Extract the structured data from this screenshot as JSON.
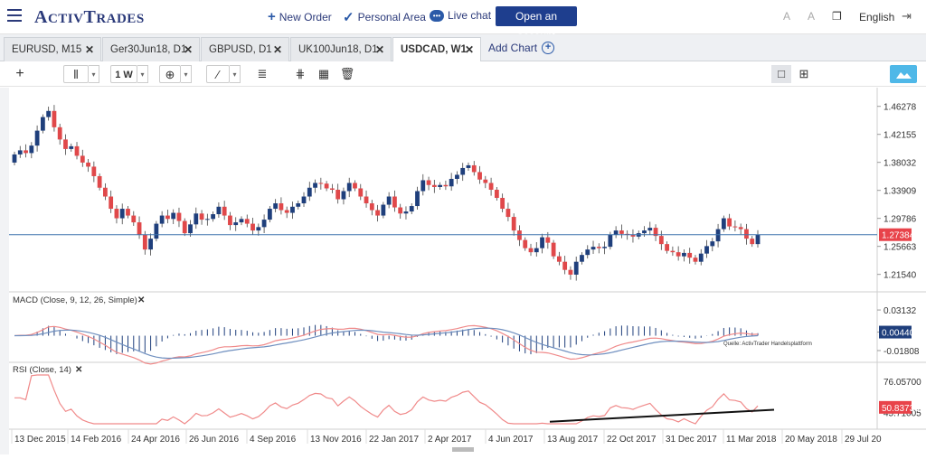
{
  "header": {
    "logo_main": "ActivTrades",
    "new_order": "New Order",
    "personal_area": "Personal Area",
    "live_chat": "Live chat",
    "open_account": "Open an account",
    "language": "English"
  },
  "tabs": [
    {
      "label": "EURUSD, M15",
      "active": false
    },
    {
      "label": "Ger30Jun18, D1",
      "active": false
    },
    {
      "label": "GBPUSD, D1",
      "active": false
    },
    {
      "label": "UK100Jun18, D1",
      "active": false
    },
    {
      "label": "USDCAD, W1",
      "active": true
    }
  ],
  "add_chart": "Add Chart",
  "toolbar": {
    "timeframe": "1 W"
  },
  "colors": {
    "bull": "#1f3f7c",
    "bear": "#e0484a",
    "price_line": "#3f74ad",
    "price_badge": "#e8434a",
    "macd_signal": "#f08a8a",
    "macd_main": "#6f8fbf"
  },
  "chart_data": [
    {
      "type": "candlestick",
      "title": "",
      "y_ticks": [
        "1.46278",
        "1.42155",
        "1.38032",
        "1.33909",
        "1.29786",
        "1.25663",
        "1.21540"
      ],
      "y_tick_values": [
        1.46278,
        1.42155,
        1.38032,
        1.33909,
        1.29786,
        1.25663,
        1.2154
      ],
      "ylim": [
        1.195,
        1.485
      ],
      "current_price": "1.27384",
      "current_value": 1.27384,
      "x_labels": [
        "13 Dec 2015",
        "14 Feb 2016",
        "24 Apr 2016",
        "26 Jun 2016",
        "4 Sep 2016",
        "13 Nov 2016",
        "22 Jan 2017",
        "2 Apr 2017",
        "4 Jun 2017",
        "13 Aug 2017",
        "22 Oct 2017",
        "31 Dec 2017",
        "11 Mar 2018",
        "20 May 2018",
        "29 Jul 20"
      ],
      "closes": [
        1.392,
        1.398,
        1.394,
        1.405,
        1.427,
        1.447,
        1.456,
        1.432,
        1.414,
        1.4,
        1.404,
        1.39,
        1.38,
        1.374,
        1.36,
        1.343,
        1.33,
        1.312,
        1.298,
        1.312,
        1.302,
        1.292,
        1.274,
        1.252,
        1.268,
        1.29,
        1.302,
        1.297,
        1.306,
        1.294,
        1.276,
        1.289,
        1.305,
        1.296,
        1.297,
        1.304,
        1.315,
        1.302,
        1.288,
        1.292,
        1.297,
        1.29,
        1.28,
        1.285,
        1.296,
        1.312,
        1.32,
        1.31,
        1.306,
        1.315,
        1.32,
        1.33,
        1.343,
        1.35,
        1.349,
        1.342,
        1.34,
        1.326,
        1.338,
        1.35,
        1.342,
        1.33,
        1.32,
        1.31,
        1.302,
        1.318,
        1.33,
        1.314,
        1.305,
        1.308,
        1.316,
        1.338,
        1.354,
        1.347,
        1.344,
        1.347,
        1.345,
        1.356,
        1.362,
        1.372,
        1.376,
        1.366,
        1.355,
        1.35,
        1.34,
        1.328,
        1.312,
        1.3,
        1.28,
        1.266,
        1.254,
        1.248,
        1.254,
        1.27,
        1.262,
        1.242,
        1.234,
        1.222,
        1.215,
        1.234,
        1.244,
        1.252,
        1.256,
        1.254,
        1.256,
        1.274,
        1.28,
        1.275,
        1.274,
        1.271,
        1.276,
        1.28,
        1.284,
        1.272,
        1.26,
        1.25,
        1.248,
        1.242,
        1.247,
        1.24,
        1.234,
        1.246,
        1.257,
        1.264,
        1.282,
        1.298,
        1.286,
        1.285,
        1.282,
        1.268,
        1.26,
        1.274
      ],
      "macd": {
        "title": "MACD (Close, 9, 12, 26, Simple)",
        "y_ticks": [
          "0.03132",
          "0.00440",
          "-0.01808"
        ],
        "y_tick_values": [
          0.03132,
          0.0044,
          -0.01808
        ],
        "ylim": [
          -0.028,
          0.038
        ],
        "current": "0.00440"
      },
      "rsi": {
        "title": "RSI (Close, 14)",
        "y_ticks": [
          "76.05700",
          "45.71005"
        ],
        "y_tick_values": [
          76.057,
          45.71005
        ],
        "ylim": [
          35,
          82
        ],
        "current": "50.83733"
      },
      "watermark": "Quelle: ActivTrader Handelsplattform"
    }
  ]
}
